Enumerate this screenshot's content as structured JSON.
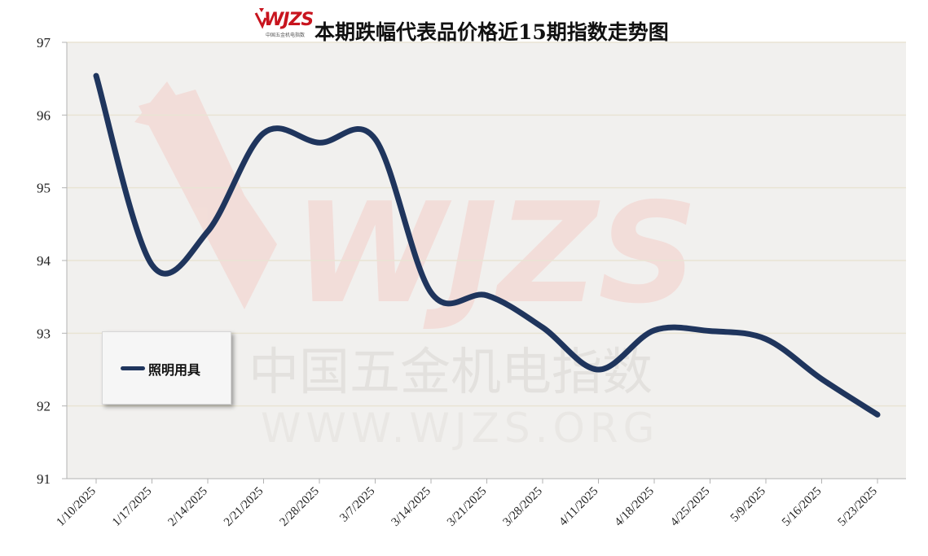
{
  "header": {
    "logo_text": "WJZS",
    "logo_subtext": "中国五金机电指数",
    "title": "本期跌幅代表品价格近15期指数走势图"
  },
  "watermark": {
    "text_cn": "中国五金机电指数",
    "text_en": "WWW.WJZS.ORG"
  },
  "colors": {
    "line": "#1f355d",
    "plot_background": "#f1f0ee",
    "grid": "#e9e4d4",
    "axis": "#b3b3b3"
  },
  "chart_data": {
    "type": "line",
    "title": "本期跌幅代表品价格近15期指数走势图",
    "xlabel": "",
    "ylabel": "",
    "categories": [
      "1/10/2025",
      "1/17/2025",
      "2/14/2025",
      "2/21/2025",
      "2/28/2025",
      "3/7/2025",
      "3/14/2025",
      "3/21/2025",
      "3/28/2025",
      "4/11/2025",
      "4/18/2025",
      "4/25/2025",
      "5/9/2025",
      "5/16/2025",
      "5/23/2025"
    ],
    "series": [
      {
        "name": "照明用具",
        "values": [
          96.54,
          93.94,
          94.4,
          95.75,
          95.62,
          95.67,
          93.56,
          93.52,
          93.08,
          92.5,
          93.04,
          93.03,
          92.92,
          92.37,
          91.88
        ]
      }
    ],
    "ylim": [
      91,
      97
    ],
    "yticks": [
      91,
      92,
      93,
      94,
      95,
      96,
      97
    ],
    "grid": "horizontal",
    "legend": "left-middle"
  }
}
